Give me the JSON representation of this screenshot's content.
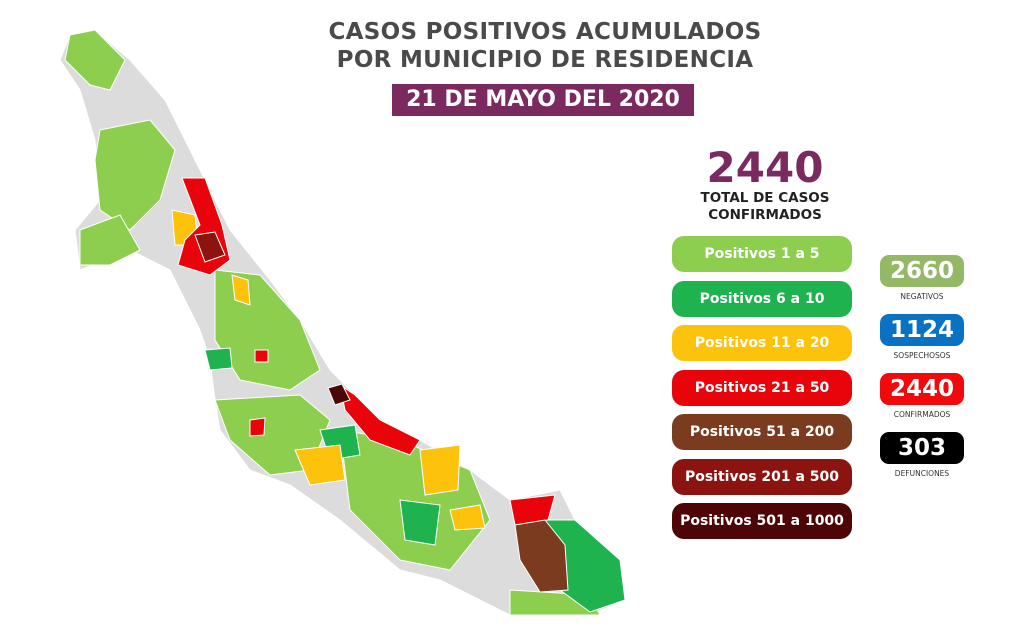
{
  "header": {
    "title_line1": "CASOS POSITIVOS ACUMULADOS",
    "title_line2": "POR MUNICIPIO DE RESIDENCIA",
    "date": "21 DE MAYO DEL 2020"
  },
  "total": {
    "value": "2440",
    "label_line1": "TOTAL DE CASOS",
    "label_line2": "CONFIRMADOS"
  },
  "legend": [
    {
      "label": "Positivos 1 a 5",
      "color": "#8dce4f"
    },
    {
      "label": "Positivos 6 a 10",
      "color": "#1fb350"
    },
    {
      "label": "Positivos 11 a 20",
      "color": "#fcc20c"
    },
    {
      "label": "Positivos 21 a 50",
      "color": "#e8040a"
    },
    {
      "label": "Positivos 51 a 200",
      "color": "#7b3b1e"
    },
    {
      "label": "Positivos 201 a 500",
      "color": "#8b1410"
    },
    {
      "label": "Positivos 501 a 1000",
      "color": "#4d0505"
    }
  ],
  "stats": [
    {
      "value": "2660",
      "label": "NEGATIVOS",
      "color": "#93b967"
    },
    {
      "value": "1124",
      "label": "SOSPECHOSOS",
      "color": "#0a72c2"
    },
    {
      "value": "2440",
      "label": "CONFIRMADOS",
      "color": "#f1090c"
    },
    {
      "value": "303",
      "label": "DEFUNCIONES",
      "color": "#000000"
    }
  ],
  "map": {
    "no_cases_color": "#dcdcdc"
  }
}
